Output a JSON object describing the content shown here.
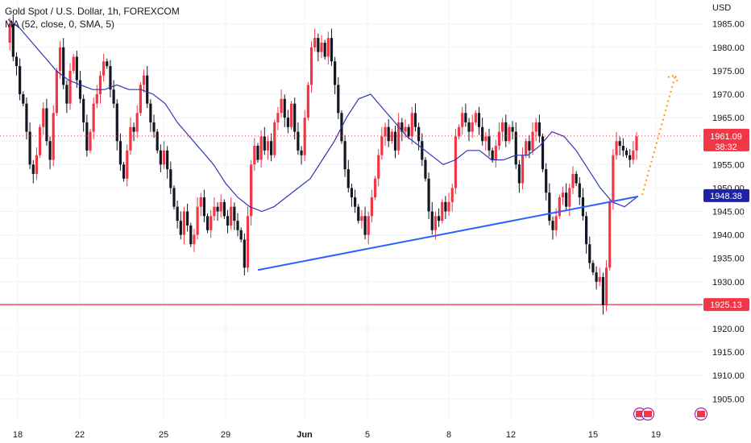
{
  "header": {
    "title": "Gold Spot / U.S. Dollar, 1h, FOREXCOM",
    "indicator": "MA (52, close, 0, SMA, 5)"
  },
  "currency": "USD",
  "colors": {
    "up": "#f23645",
    "down": "#131722",
    "ma": "#2f34b7",
    "trendline": "#2962ff",
    "support": "#f23645",
    "projection": "#ff9800",
    "grid": "#f0f3fa",
    "current_price_bg": "#f23645",
    "ma_tag_bg": "#1e22aa"
  },
  "chart_data": {
    "type": "candlestick",
    "title": "Gold Spot / U.S. Dollar, 1h, FOREXCOM",
    "ylim": [
      1900,
      1990
    ],
    "y_ticks": [
      1905,
      1910,
      1915,
      1920,
      1925,
      1930,
      1935,
      1940,
      1945,
      1950,
      1955,
      1960,
      1965,
      1970,
      1975,
      1980,
      1985
    ],
    "x_ticks": [
      {
        "label": "18",
        "bold": false
      },
      {
        "label": "22",
        "bold": false
      },
      {
        "label": "25",
        "bold": false
      },
      {
        "label": "29",
        "bold": false
      },
      {
        "label": "Jun",
        "bold": true
      },
      {
        "label": "5",
        "bold": false
      },
      {
        "label": "8",
        "bold": false
      },
      {
        "label": "12",
        "bold": false
      },
      {
        "label": "15",
        "bold": false
      },
      {
        "label": "19",
        "bold": false
      }
    ],
    "price_path": [
      1981,
      1985,
      1978,
      1976,
      1970,
      1968,
      1962,
      1955,
      1953,
      1957,
      1963,
      1967,
      1960,
      1956,
      1966,
      1975,
      1980,
      1972,
      1968,
      1975,
      1978,
      1973,
      1969,
      1964,
      1958,
      1962,
      1968,
      1970,
      1974,
      1977,
      1976,
      1971,
      1968,
      1960,
      1955,
      1952,
      1958,
      1963,
      1962,
      1966,
      1972,
      1974,
      1968,
      1964,
      1962,
      1958,
      1955,
      1958,
      1954,
      1950,
      1946,
      1943,
      1940,
      1945,
      1942,
      1938,
      1940,
      1946,
      1948,
      1944,
      1941,
      1944,
      1946,
      1945,
      1947,
      1944,
      1942,
      1946,
      1943,
      1941,
      1939,
      1933,
      1944,
      1955,
      1959,
      1956,
      1961,
      1958,
      1960,
      1957,
      1964,
      1966,
      1969,
      1965,
      1963,
      1968,
      1962,
      1958,
      1957,
      1965,
      1972,
      1980,
      1982,
      1979,
      1981,
      1978,
      1982,
      1977,
      1972,
      1966,
      1960,
      1954,
      1950,
      1948,
      1946,
      1943,
      1944,
      1940,
      1944,
      1948,
      1952,
      1957,
      1961,
      1963,
      1960,
      1962,
      1958,
      1964,
      1962,
      1963,
      1961,
      1966,
      1963,
      1960,
      1956,
      1952,
      1945,
      1941,
      1944,
      1943,
      1947,
      1945,
      1947,
      1950,
      1961,
      1963,
      1966,
      1964,
      1962,
      1964,
      1966,
      1963,
      1960,
      1961,
      1958,
      1956,
      1959,
      1962,
      1964,
      1960,
      1963,
      1962,
      1955,
      1951,
      1957,
      1960,
      1958,
      1962,
      1964,
      1961,
      1954,
      1949,
      1943,
      1941,
      1944,
      1948,
      1949,
      1946,
      1950,
      1953,
      1951,
      1948,
      1944,
      1938,
      1934,
      1932,
      1930,
      1931,
      1925,
      1933,
      1947,
      1957,
      1960,
      1959,
      1958,
      1957,
      1956,
      1958,
      1961
    ],
    "ma_path": [
      1986,
      1984,
      1981,
      1978,
      1975,
      1973,
      1972,
      1971,
      1971,
      1972,
      1971,
      1971,
      1970,
      1968,
      1964,
      1961,
      1958,
      1955,
      1951,
      1948,
      1946,
      1945,
      1946,
      1948,
      1950,
      1952,
      1956,
      1960,
      1965,
      1969,
      1970,
      1967,
      1964,
      1961,
      1959,
      1957,
      1955,
      1956,
      1958,
      1958,
      1956,
      1956,
      1957,
      1957,
      1959,
      1962,
      1961,
      1958,
      1954,
      1950,
      1947,
      1946,
      1948
    ],
    "trendline": {
      "from": {
        "x": "May 30",
        "y": 1932.5
      },
      "to": {
        "x": "Jun 17",
        "y": 1948.2
      }
    },
    "support_level": 1925.13,
    "projection": {
      "from": 1948.5,
      "to": 1974
    },
    "current_price": "1961.09",
    "countdown": "38:32",
    "ma_value": "1948.38",
    "support_label": "1925.13"
  }
}
